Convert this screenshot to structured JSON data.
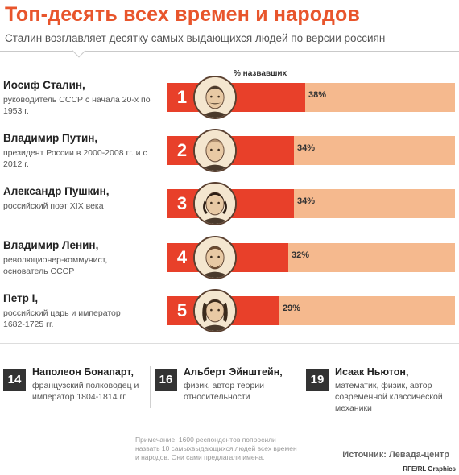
{
  "title": "Топ-десять всех времен и народов",
  "subtitle": "Сталин возглавляет десятку самых выдающихся людей по версии россиян",
  "chart_data": {
    "type": "bar",
    "column_header": "% назвавших",
    "unit": "%",
    "xlim": [
      0,
      100
    ],
    "items": [
      {
        "rank": "1",
        "name": "Иосиф Сталин,",
        "desc_lines": [
          "руководитель СССР с начала 20-х по",
          "1953 г."
        ],
        "value": 38,
        "label": "38%",
        "icon": "stalin-portrait-icon"
      },
      {
        "rank": "2",
        "name": "Владимир Путин,",
        "desc_lines": [
          "президент России в 2000-2008 гг. и с",
          "2012 г."
        ],
        "value": 34,
        "label": "34%",
        "icon": "putin-portrait-icon"
      },
      {
        "rank": "3",
        "name": "Александр Пушкин,",
        "desc_lines": [
          "российский поэт XIX века"
        ],
        "value": 34,
        "label": "34%",
        "icon": "pushkin-portrait-icon"
      },
      {
        "rank": "4",
        "name": "Владимир Ленин,",
        "desc_lines": [
          "революционер-коммунист,",
          "основатель СССР"
        ],
        "value": 32,
        "label": "32%",
        "icon": "lenin-portrait-icon"
      },
      {
        "rank": "5",
        "name": "Петр I,",
        "desc_lines": [
          "российский царь и император",
          "1682-1725 гг."
        ],
        "value": 29,
        "label": "29%",
        "icon": "peter-portrait-icon"
      }
    ]
  },
  "others": [
    {
      "rank": "14",
      "name": "Наполеон Бонапарт,",
      "desc_lines": [
        "французский полководец и",
        "император 1804-1814 гг."
      ]
    },
    {
      "rank": "16",
      "name": "Альберт Эйнштейн,",
      "desc_lines": [
        "физик, автор теории",
        "относительности"
      ]
    },
    {
      "rank": "19",
      "name": "Исаак Ньютон,",
      "desc_lines": [
        "математик, физик, автор",
        "современной классической",
        "механики"
      ]
    }
  ],
  "note_lines": [
    "Примечание: 1600 респондентов попросили",
    "назвать 10 самыхвыдающихся людей всех времен",
    "и народов. Они сами предлагали имена."
  ],
  "source": "Источник: Левада-центр",
  "credit": "RFE/RL Graphics",
  "colors": {
    "accent": "#e8402a",
    "track": "#f5b98e",
    "title": "#e8552c",
    "badge": "#333333"
  }
}
